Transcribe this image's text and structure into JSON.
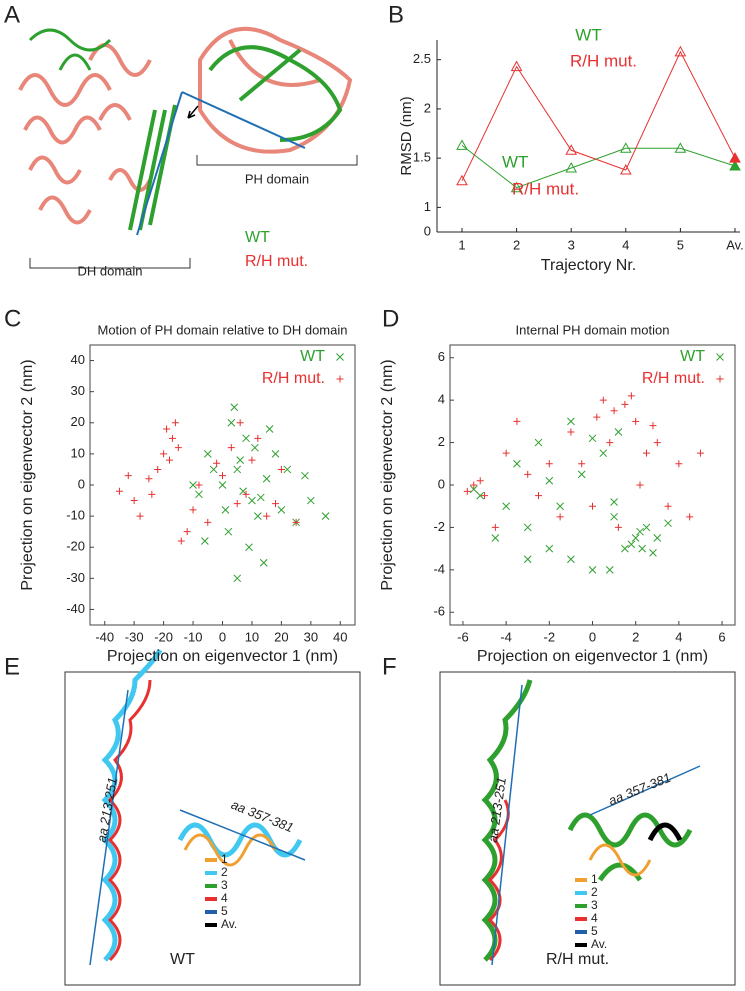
{
  "panel_labels": [
    "A",
    "B",
    "C",
    "D",
    "E",
    "F"
  ],
  "structure_a": {
    "ph_label": "PH domain",
    "dh_label": "DH domain",
    "wt_label": "WT",
    "mut_label": "R/H mut."
  },
  "structure_e": {
    "helix1": "aa 213-251",
    "helix2": "aa 357-381",
    "caption": "WT",
    "legend": [
      {
        "label": "1",
        "color": "#f0a030"
      },
      {
        "label": "2",
        "color": "#40c8f0"
      },
      {
        "label": "3",
        "color": "#2ea02e"
      },
      {
        "label": "4",
        "color": "#e83030"
      },
      {
        "label": "5",
        "color": "#2060a8"
      },
      {
        "label": "Av.",
        "color": "#000000"
      }
    ]
  },
  "structure_f": {
    "helix1": "aa 213-251",
    "helix2": "aa 357-381",
    "caption": "R/H mut.",
    "legend": [
      {
        "label": "1",
        "color": "#f0a030"
      },
      {
        "label": "2",
        "color": "#40c8f0"
      },
      {
        "label": "3",
        "color": "#2ea02e"
      },
      {
        "label": "4",
        "color": "#e83030"
      },
      {
        "label": "5",
        "color": "#2060a8"
      },
      {
        "label": "Av.",
        "color": "#000000"
      }
    ]
  },
  "chart_data": [
    {
      "type": "line",
      "ylabel": "RMSD (nm)",
      "xlabel": "Trajectory Nr.",
      "categories": [
        "1",
        "2",
        "3",
        "4",
        "5",
        "Av."
      ],
      "ylim": [
        0.75,
        2.7
      ],
      "yticks": [
        1,
        1.5,
        2,
        2.5
      ],
      "legend": "top-center",
      "origin_label": "0",
      "annotations": [
        "WT",
        "R/H mut."
      ],
      "series": [
        {
          "name": "WT",
          "color": "#2ea02e",
          "values": [
            1.63,
            1.2,
            1.4,
            1.6,
            1.6,
            1.42
          ]
        },
        {
          "name": "R/H mut.",
          "color": "#e83030",
          "values": [
            1.27,
            2.43,
            1.58,
            1.38,
            2.58,
            1.5
          ]
        }
      ]
    },
    {
      "type": "scatter",
      "title": "Motion of PH domain relative to DH domain",
      "xlabel": "Projection on eigenvector 1 (nm)",
      "ylabel": "Projection on eigenvector 2 (nm)",
      "xlim": [
        -45,
        45
      ],
      "ylim": [
        -45,
        45
      ],
      "xticks": [
        -40,
        -30,
        -20,
        -10,
        0,
        10,
        20,
        30,
        40
      ],
      "yticks": [
        -40,
        -30,
        -20,
        -10,
        0,
        10,
        20,
        30,
        40
      ],
      "legend": "top-right",
      "series": [
        {
          "name": "WT",
          "color": "#2ea02e",
          "marker": "x",
          "x": [
            0,
            5,
            10,
            -5,
            8,
            12,
            3,
            15,
            20,
            -8,
            2,
            6,
            25,
            30,
            -3,
            9,
            18,
            4,
            -10,
            14,
            7,
            22,
            11,
            1,
            28,
            35,
            -6,
            16,
            5,
            13
          ],
          "values": [
            0,
            5,
            -5,
            10,
            15,
            -10,
            20,
            2,
            -8,
            -3,
            -15,
            8,
            -12,
            -5,
            5,
            -20,
            10,
            25,
            0,
            -25,
            -2,
            5,
            12,
            -8,
            3,
            -10,
            -18,
            18,
            -30,
            -4
          ]
        },
        {
          "name": "R/H mut.",
          "color": "#e83030",
          "marker": "+",
          "x": [
            -20,
            -18,
            -15,
            -22,
            -17,
            -25,
            -30,
            -35,
            -10,
            -5,
            0,
            5,
            10,
            15,
            20,
            -12,
            -28,
            -8,
            3,
            8,
            -19,
            -14,
            25,
            -2,
            12,
            -24,
            -32,
            -16,
            18,
            6
          ],
          "values": [
            10,
            8,
            12,
            5,
            15,
            2,
            -5,
            -2,
            -8,
            -12,
            3,
            -6,
            8,
            -10,
            5,
            -15,
            -10,
            0,
            12,
            -3,
            18,
            -18,
            -12,
            7,
            15,
            -3,
            3,
            20,
            -6,
            20
          ]
        }
      ]
    },
    {
      "type": "scatter",
      "title": "Internal PH domain motion",
      "xlabel": "Projection on eigenvector 1 (nm)",
      "ylabel": "Projection on eigenvector 2 (nm)",
      "xlim": [
        -6.6,
        6.6
      ],
      "ylim": [
        -6.6,
        6.6
      ],
      "xticks": [
        -6,
        -4,
        -2,
        0,
        2,
        4,
        6
      ],
      "yticks": [
        -6,
        -4,
        -2,
        0,
        2,
        4,
        6
      ],
      "legend": "top-right",
      "series": [
        {
          "name": "WT",
          "color": "#2ea02e",
          "marker": "x",
          "x": [
            2,
            1.5,
            2.5,
            1.8,
            2.2,
            -5.5,
            -5.2,
            -4,
            -3,
            -2,
            -1,
            0,
            1,
            3,
            -0.5,
            0.5,
            -3.5,
            -2.5,
            1.2,
            2.8,
            -1.5,
            0,
            -4.5,
            3.5,
            -1,
            1,
            -2,
            0.8,
            2.3,
            -3
          ],
          "values": [
            -2.5,
            -3,
            -2,
            -2.8,
            -2.2,
            -0.2,
            -0.5,
            -1,
            -2,
            -3,
            -3.5,
            -4,
            -1.5,
            -2.5,
            0.5,
            1.5,
            1,
            2,
            2.5,
            -3.2,
            -1,
            2.2,
            -2.5,
            -1.8,
            3,
            -0.8,
            0.2,
            -4,
            -3,
            -3.5
          ]
        },
        {
          "name": "R/H mut.",
          "color": "#e83030",
          "marker": "+",
          "x": [
            1,
            0.5,
            1.5,
            2,
            0.2,
            -5.5,
            -5.8,
            -5.2,
            -5,
            3,
            4,
            5,
            -1,
            -2,
            -3,
            -4,
            2.5,
            3.5,
            0,
            -1.5,
            1.2,
            2.2,
            -2.5,
            0.8,
            4.5,
            -3.5,
            1.8,
            -0.5,
            2.8,
            -4.5
          ],
          "values": [
            3.5,
            4,
            3.8,
            3,
            3.2,
            0,
            -0.3,
            0.2,
            -0.5,
            2,
            1,
            1.5,
            2.5,
            1,
            0.5,
            1.5,
            1.5,
            -1,
            -1,
            -1.5,
            -2,
            0,
            -0.5,
            2,
            -1.5,
            3,
            4.2,
            1,
            2.8,
            -2
          ]
        }
      ]
    }
  ]
}
